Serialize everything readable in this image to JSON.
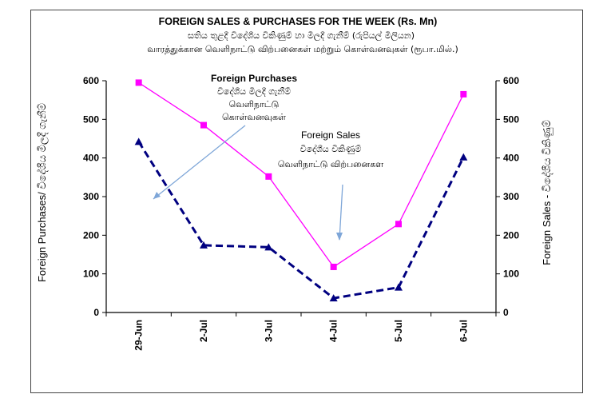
{
  "chart_data": {
    "type": "line",
    "title": "FOREIGN SALES & PURCHASES FOR THE WEEK (Rs. Mn)",
    "subtitle_sinhala": "සතිය තුළදී විදේශීය විකිණුම් හා මිලදී ගැනීම් (රුපියල් මිලියන)",
    "subtitle_tamil": "வாரத்துக்கான வெளிநாட்டு விற்பனைகள் மற்றும் கொள்வனவுகள் (ரூபா.மில்.)",
    "categories": [
      "29-Jun",
      "2-Jul",
      "3-Jul",
      "4-Jul",
      "5-Jul",
      "6-Jul"
    ],
    "ylabel_left": "Foreign Purchases/ විදේශීය මිලදී ගැනීම්",
    "ylabel_right": "Foreign Sales  -  විදේශීය විකිණුම්",
    "ylim": [
      0,
      600
    ],
    "yticks": [
      "0",
      "100",
      "200",
      "300",
      "400",
      "500",
      "600"
    ],
    "series": [
      {
        "name": "Foreign Purchases",
        "color": "#ff00ff",
        "values": [
          595,
          485,
          352,
          118,
          229,
          565
        ]
      },
      {
        "name": "Foreign Sales",
        "color": "#000080",
        "values": [
          442,
          174,
          169,
          37,
          65,
          402
        ]
      }
    ],
    "annotations": {
      "purchases": {
        "label": "Foreign Purchases",
        "sinhala": "විදේශීය මිලදී ගැනීම්",
        "tamil": "வெளிநாட்டு",
        "tamil2": "கொள்வனவுகள்"
      },
      "sales": {
        "label": "Foreign Sales",
        "sinhala": "විදේශීය විකිණුම්",
        "tamil": "வெளிநாட்டு  விற்பனைகள"
      }
    },
    "grid": false,
    "legend": "none"
  }
}
